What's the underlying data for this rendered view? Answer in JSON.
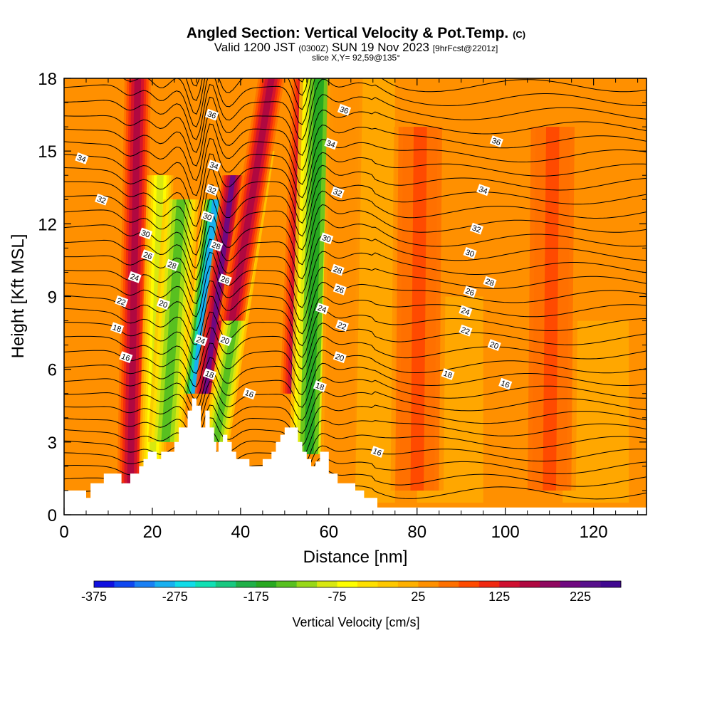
{
  "header": {
    "title": "Angled Section: Vertical Velocity & Pot.Temp.",
    "title_suffix": "(C)",
    "valid_main": "Valid 1200 JST",
    "valid_utc": "(0300Z)",
    "valid_date": "SUN 19 Nov 2023",
    "forecast": "[9hrFcst@2201z]",
    "slice": "slice X,Y= 92,59@135°"
  },
  "chart_data": {
    "type": "heatmap",
    "xlabel": "Distance [nm]",
    "ylabel": "Height [Kft MSL]",
    "xlim": [
      0,
      132
    ],
    "ylim": [
      0,
      18
    ],
    "x_ticks": [
      0,
      20,
      40,
      60,
      80,
      100,
      120
    ],
    "y_ticks": [
      0,
      3,
      6,
      9,
      12,
      15,
      18
    ],
    "colorbar": {
      "label": "Vertical Velocity [cm/s]",
      "min": -375,
      "max": 275,
      "step": 25,
      "tick_values": [
        -375,
        -275,
        -175,
        -75,
        25,
        125,
        225
      ],
      "colors": [
        "#1010e0",
        "#1048f0",
        "#1a80f4",
        "#18b0f0",
        "#10dce8",
        "#10e0b4",
        "#18c880",
        "#20b048",
        "#28a820",
        "#58c020",
        "#98d818",
        "#d8e810",
        "#ffff00",
        "#ffe000",
        "#ffc800",
        "#ffb000",
        "#ff9000",
        "#ff7000",
        "#ff4a00",
        "#f02810",
        "#d01030",
        "#b00840",
        "#900860",
        "#700880",
        "#58108c",
        "#400890"
      ]
    },
    "terrain": [
      [
        0,
        1
      ],
      [
        5,
        1
      ],
      [
        5,
        0.7
      ],
      [
        6,
        0.7
      ],
      [
        6,
        1.3
      ],
      [
        9,
        1.3
      ],
      [
        9,
        1.7
      ],
      [
        13,
        1.7
      ],
      [
        13,
        1.3
      ],
      [
        15,
        1.3
      ],
      [
        15,
        1.7
      ],
      [
        17,
        1.7
      ],
      [
        17,
        2.0
      ],
      [
        18,
        2.0
      ],
      [
        18,
        2.3
      ],
      [
        19,
        2.3
      ],
      [
        19,
        2.6
      ],
      [
        21,
        2.6
      ],
      [
        21,
        2.3
      ],
      [
        22,
        2.3
      ],
      [
        22,
        2.6
      ],
      [
        25,
        2.6
      ],
      [
        25,
        3.0
      ],
      [
        26,
        3.0
      ],
      [
        26,
        3.6
      ],
      [
        28,
        3.6
      ],
      [
        28,
        4.3
      ],
      [
        29,
        4.3
      ],
      [
        29,
        4.8
      ],
      [
        30,
        4.8
      ],
      [
        30,
        4.5
      ],
      [
        31,
        4.5
      ],
      [
        31,
        3.6
      ],
      [
        32,
        3.6
      ],
      [
        32,
        4.3
      ],
      [
        33,
        4.3
      ],
      [
        33,
        3.6
      ],
      [
        34,
        3.6
      ],
      [
        34,
        3.0
      ],
      [
        34.5,
        3.0
      ],
      [
        34.5,
        2.6
      ],
      [
        35,
        2.6
      ],
      [
        35,
        3.0
      ],
      [
        36,
        3.0
      ],
      [
        36,
        3.3
      ],
      [
        37,
        3.3
      ],
      [
        37,
        3.0
      ],
      [
        38,
        3.0
      ],
      [
        38,
        2.6
      ],
      [
        39,
        2.6
      ],
      [
        39,
        2.3
      ],
      [
        42,
        2.3
      ],
      [
        42,
        2.0
      ],
      [
        45,
        2.0
      ],
      [
        45,
        2.3
      ],
      [
        47,
        2.3
      ],
      [
        47,
        2.6
      ],
      [
        48,
        2.6
      ],
      [
        48,
        3.0
      ],
      [
        49,
        3.0
      ],
      [
        49,
        3.3
      ],
      [
        50,
        3.3
      ],
      [
        50,
        3.6
      ],
      [
        53,
        3.6
      ],
      [
        53,
        3.0
      ],
      [
        54,
        3.0
      ],
      [
        54,
        2.6
      ],
      [
        55,
        2.6
      ],
      [
        55,
        2.3
      ],
      [
        56,
        2.3
      ],
      [
        56,
        2.0
      ],
      [
        57,
        2.0
      ],
      [
        57,
        2.2
      ],
      [
        58,
        2.2
      ],
      [
        58,
        2.6
      ],
      [
        60,
        2.6
      ],
      [
        60,
        1.7
      ],
      [
        62,
        1.7
      ],
      [
        62,
        1.3
      ],
      [
        66,
        1.3
      ],
      [
        66,
        1.0
      ],
      [
        68,
        1.0
      ],
      [
        68,
        0.7
      ],
      [
        71,
        0.7
      ],
      [
        71,
        0.3
      ],
      [
        132,
        0.3
      ]
    ],
    "vv_features": [
      {
        "x": 15,
        "width": 1.5,
        "value": 150,
        "ymin": 1,
        "ymax": 18,
        "tilt": 0.1
      },
      {
        "x": 20,
        "width": 1.5,
        "value": -100,
        "ymin": 2,
        "ymax": 14,
        "tilt": 0.15
      },
      {
        "x": 23,
        "width": 2,
        "value": -150,
        "ymin": 3,
        "ymax": 13,
        "tilt": 0.35
      },
      {
        "x": 29.5,
        "width": 1.4,
        "value": -300,
        "ymin": 5,
        "ymax": 13,
        "tilt": 0.6
      },
      {
        "x": 32,
        "width": 1.2,
        "value": 200,
        "ymin": 5,
        "ymax": 14,
        "tilt": 0.7
      },
      {
        "x": 34.5,
        "width": 1.5,
        "value": -150,
        "ymin": 3,
        "ymax": 15,
        "tilt": 0.85
      },
      {
        "x": 38,
        "width": 1.5,
        "value": 150,
        "ymin": 8,
        "ymax": 18,
        "tilt": 0.9
      },
      {
        "x": 52,
        "width": 1.5,
        "value": 175,
        "ymin": 5,
        "ymax": 18,
        "tilt": 0.2
      },
      {
        "x": 55.5,
        "width": 2.2,
        "value": -175,
        "ymin": 2.5,
        "ymax": 18,
        "tilt": 0.15
      },
      {
        "x": 62,
        "width": 2,
        "value": 25,
        "ymin": 1,
        "ymax": 18,
        "tilt": 0.1
      },
      {
        "x": 80,
        "width": 3,
        "value": 75,
        "ymin": 1,
        "ymax": 16,
        "tilt": 0.05
      },
      {
        "x": 110,
        "width": 3,
        "value": 75,
        "ymin": 1,
        "ymax": 16,
        "tilt": 0.05
      }
    ],
    "theta_labels": [
      {
        "text": "16",
        "x": 14,
        "y": 6.5
      },
      {
        "text": "16",
        "x": 42,
        "y": 5.0
      },
      {
        "text": "16",
        "x": 71,
        "y": 2.6
      },
      {
        "text": "16",
        "x": 100,
        "y": 5.4
      },
      {
        "text": "18",
        "x": 12,
        "y": 7.7
      },
      {
        "text": "18",
        "x": 33,
        "y": 5.8
      },
      {
        "text": "18",
        "x": 58,
        "y": 5.3
      },
      {
        "text": "18",
        "x": 87,
        "y": 5.8
      },
      {
        "text": "20",
        "x": 22.5,
        "y": 8.7
      },
      {
        "text": "20",
        "x": 36.5,
        "y": 7.2
      },
      {
        "text": "20",
        "x": 62.5,
        "y": 6.5
      },
      {
        "text": "20",
        "x": 97.5,
        "y": 7.0
      },
      {
        "text": "22",
        "x": 13,
        "y": 8.8
      },
      {
        "text": "22",
        "x": 63,
        "y": 7.8
      },
      {
        "text": "22",
        "x": 91,
        "y": 7.6
      },
      {
        "text": "24",
        "x": 16,
        "y": 9.8
      },
      {
        "text": "24",
        "x": 31,
        "y": 7.2
      },
      {
        "text": "24",
        "x": 58.5,
        "y": 8.5
      },
      {
        "text": "24",
        "x": 91,
        "y": 8.4
      },
      {
        "text": "26",
        "x": 19,
        "y": 10.7
      },
      {
        "text": "26",
        "x": 36.5,
        "y": 9.7
      },
      {
        "text": "26",
        "x": 62.5,
        "y": 9.3
      },
      {
        "text": "26",
        "x": 92,
        "y": 9.2
      },
      {
        "text": "28",
        "x": 24.5,
        "y": 10.3
      },
      {
        "text": "28",
        "x": 34.5,
        "y": 11.1
      },
      {
        "text": "28",
        "x": 62,
        "y": 10.1
      },
      {
        "text": "28",
        "x": 96.5,
        "y": 9.6
      },
      {
        "text": "30",
        "x": 18.5,
        "y": 11.6
      },
      {
        "text": "30",
        "x": 32.5,
        "y": 12.3
      },
      {
        "text": "30",
        "x": 59.5,
        "y": 11.4
      },
      {
        "text": "30",
        "x": 92,
        "y": 10.8
      },
      {
        "text": "32",
        "x": 8.5,
        "y": 13.0
      },
      {
        "text": "32",
        "x": 33.5,
        "y": 13.4
      },
      {
        "text": "32",
        "x": 62,
        "y": 13.3
      },
      {
        "text": "32",
        "x": 93.5,
        "y": 11.8
      },
      {
        "text": "34",
        "x": 4,
        "y": 14.7
      },
      {
        "text": "34",
        "x": 34,
        "y": 14.4
      },
      {
        "text": "34",
        "x": 60.5,
        "y": 15.3
      },
      {
        "text": "34",
        "x": 95,
        "y": 13.4
      },
      {
        "text": "36",
        "x": 33.5,
        "y": 16.5
      },
      {
        "text": "36",
        "x": 63.5,
        "y": 16.7
      },
      {
        "text": "36",
        "x": 98,
        "y": 15.4
      }
    ]
  }
}
